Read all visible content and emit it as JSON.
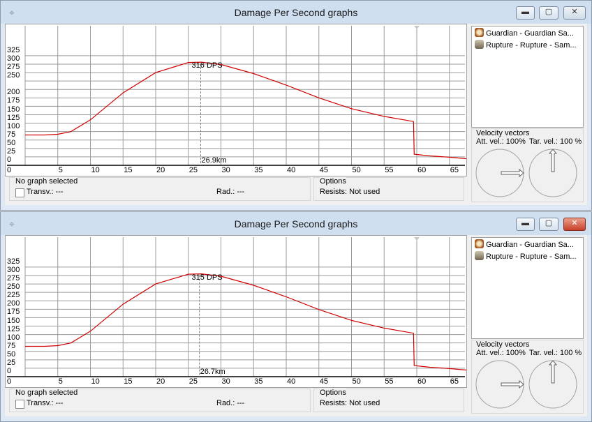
{
  "windows": [
    {
      "title": "Damage Per Second graphs",
      "controls": {
        "minimize": "▬",
        "maximize": "▢",
        "close": "✕"
      },
      "chart": {
        "y_ticks": [
          "325",
          "300",
          "275",
          "250",
          "200",
          "175",
          "150",
          "125",
          "100",
          "75",
          "50",
          "25",
          "0"
        ],
        "x_ticks": [
          "0",
          "5",
          "10",
          "15",
          "20",
          "25",
          "30",
          "35",
          "40",
          "45",
          "50",
          "55",
          "60",
          "65"
        ],
        "peak_label": "316 DPS",
        "cursor_label": "26.9km"
      },
      "graph_group": {
        "label": "No graph selected",
        "transv": "Transv.: ---",
        "rad": "Rad.: ---"
      },
      "options_group": {
        "label": "Options",
        "resists": "Resists: Not used"
      },
      "list": [
        "Guardian - Guardian Sa...",
        "Rupture - Rupture - Sam..."
      ],
      "velocity": {
        "title": "Velocity vectors",
        "att": "Att. vel.: 100%",
        "tar": "Tar. vel.: 100 %"
      }
    },
    {
      "title": "Damage Per Second graphs",
      "controls": {
        "minimize": "▬",
        "maximize": "▢",
        "close": "✕"
      },
      "chart": {
        "y_ticks": [
          "325",
          "300",
          "275",
          "250",
          "225",
          "200",
          "175",
          "150",
          "125",
          "100",
          "75",
          "50",
          "25",
          "0"
        ],
        "x_ticks": [
          "0",
          "5",
          "10",
          "15",
          "20",
          "25",
          "30",
          "35",
          "40",
          "45",
          "50",
          "55",
          "60",
          "65"
        ],
        "peak_label": "315 DPS",
        "cursor_label": "26.7km"
      },
      "graph_group": {
        "label": "No graph selected",
        "transv": "Transv.: ---",
        "rad": "Rad.: ---"
      },
      "options_group": {
        "label": "Options",
        "resists": "Resists: Not used"
      },
      "list": [
        "Guardian - Guardian Sa...",
        "Rupture - Rupture - Sam..."
      ],
      "velocity": {
        "title": "Velocity vectors",
        "att": "Att. vel.: 100%",
        "tar": "Tar. vel.: 100 %"
      }
    }
  ],
  "chart_data": [
    {
      "type": "line",
      "xlabel": "",
      "ylabel": "",
      "xlim": [
        0,
        68
      ],
      "ylim": [
        0,
        335
      ],
      "grid": true,
      "series": [
        {
          "x": [
            0,
            3,
            5,
            7,
            10,
            15,
            20,
            25,
            27,
            30,
            35,
            40,
            45,
            50,
            55,
            59.5,
            59.6,
            62,
            65,
            68
          ],
          "y": [
            90,
            90,
            92,
            100,
            135,
            215,
            275,
            305,
            306,
            299,
            272,
            238,
            200,
            168,
            145,
            130,
            33,
            28,
            24,
            19
          ]
        }
      ],
      "annotations": [
        {
          "text": "316 DPS",
          "x": 25.3,
          "y": 306
        },
        {
          "text": "26.9km",
          "x": 26.9,
          "y": 0
        }
      ]
    },
    {
      "type": "line",
      "xlabel": "",
      "ylabel": "",
      "xlim": [
        0,
        68
      ],
      "ylim": [
        0,
        335
      ],
      "grid": true,
      "series": [
        {
          "x": [
            0,
            3,
            5,
            7,
            10,
            15,
            20,
            25,
            27,
            30,
            35,
            40,
            45,
            50,
            55,
            59.5,
            59.6,
            62,
            65,
            68
          ],
          "y": [
            90,
            90,
            92,
            100,
            135,
            215,
            275,
            304,
            305,
            298,
            271,
            237,
            199,
            167,
            144,
            129,
            33,
            28,
            24,
            19
          ]
        }
      ],
      "annotations": [
        {
          "text": "315 DPS",
          "x": 25.3,
          "y": 305
        },
        {
          "text": "26.7km",
          "x": 26.7,
          "y": 0
        }
      ]
    }
  ]
}
